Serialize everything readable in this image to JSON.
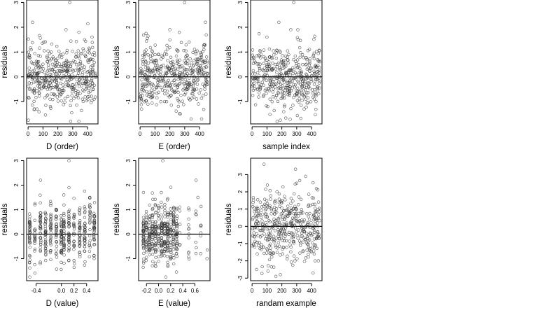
{
  "chart_data": [
    {
      "id": "panel-1",
      "type": "scatter",
      "xlabel": "D (order)",
      "ylabel": "residuals",
      "xlim": [
        -10,
        470
      ],
      "ylim": [
        -1.9,
        3.1
      ],
      "xticks": [
        0,
        100,
        200,
        300,
        400
      ],
      "yticks": [
        -1,
        0,
        1,
        2,
        3
      ],
      "hline": 0,
      "x_range": [
        0,
        455
      ],
      "y_range": [
        -1.8,
        3.0
      ],
      "points": [
        {
          "x": 2,
          "y": -1.75
        },
        {
          "x": 30,
          "y": 2.2
        },
        {
          "x": 280,
          "y": 3.0
        },
        {
          "x": 255,
          "y": 1.9
        },
        {
          "x": 430,
          "y": 1.6
        },
        {
          "x": 60,
          "y": -1.3
        },
        {
          "x": 150,
          "y": -1.2
        },
        {
          "x": 380,
          "y": 1.5
        }
      ],
      "n_points": 455,
      "seed": 11,
      "pattern": "uniform"
    },
    {
      "id": "panel-2",
      "type": "scatter",
      "xlabel": "E (order)",
      "ylabel": "residuals",
      "xlim": [
        -10,
        470
      ],
      "ylim": [
        -1.9,
        3.1
      ],
      "xticks": [
        0,
        100,
        200,
        300,
        400
      ],
      "yticks": [
        -1,
        0,
        1,
        2,
        3
      ],
      "hline": 0,
      "x_range": [
        0,
        455
      ],
      "y_range": [
        -1.7,
        3.0
      ],
      "points": [
        {
          "x": 300,
          "y": 3.0
        },
        {
          "x": 440,
          "y": 2.2
        },
        {
          "x": 40,
          "y": 1.75
        },
        {
          "x": 200,
          "y": 1.9
        },
        {
          "x": 10,
          "y": -1.3
        },
        {
          "x": 270,
          "y": -1.5
        },
        {
          "x": 330,
          "y": 1.4
        }
      ],
      "n_points": 455,
      "seed": 23,
      "pattern": "uniform"
    },
    {
      "id": "panel-3",
      "type": "scatter",
      "xlabel": "sample index",
      "ylabel": "residuals",
      "xlim": [
        -10,
        470
      ],
      "ylim": [
        -1.9,
        3.1
      ],
      "xticks": [
        0,
        100,
        200,
        300,
        400
      ],
      "yticks": [
        -1,
        0,
        1,
        2,
        3
      ],
      "hline": 0,
      "x_range": [
        0,
        455
      ],
      "y_range": [
        -1.8,
        3.0
      ],
      "points": [
        {
          "x": 280,
          "y": 3.0
        },
        {
          "x": 180,
          "y": 2.2
        },
        {
          "x": 190,
          "y": -1.75
        },
        {
          "x": 260,
          "y": 1.9
        },
        {
          "x": 100,
          "y": 1.6
        },
        {
          "x": 350,
          "y": -1.3
        }
      ],
      "n_points": 455,
      "seed": 37,
      "pattern": "uniform"
    },
    {
      "id": "panel-4",
      "type": "scatter",
      "xlabel": "D (value)",
      "ylabel": "residuals",
      "xlim": [
        -0.55,
        0.58
      ],
      "ylim": [
        -1.9,
        3.1
      ],
      "xticks": [
        -0.4,
        0.0,
        0.2,
        0.4
      ],
      "xtick_labels": [
        "-0.4",
        "0.0",
        "0.2",
        "0.4"
      ],
      "yticks": [
        -1,
        0,
        1,
        2,
        3
      ],
      "hline": 0,
      "x_values": [
        -0.5,
        -0.42,
        -0.33,
        -0.25,
        -0.17,
        -0.08,
        0.0,
        0.04,
        0.12,
        0.2,
        0.29,
        0.37,
        0.45,
        0.52
      ],
      "y_range": [
        -1.8,
        3.0
      ],
      "points": [
        {
          "x": 0.12,
          "y": 3.0
        },
        {
          "x": -0.33,
          "y": 2.2
        },
        {
          "x": 0.12,
          "y": 1.9
        },
        {
          "x": -0.5,
          "y": -1.75
        },
        {
          "x": 0.45,
          "y": 1.5
        }
      ],
      "n_points": 455,
      "seed": 51,
      "pattern": "discrete"
    },
    {
      "id": "panel-5",
      "type": "scatter",
      "xlabel": "E (value)",
      "ylabel": "residuals",
      "xlim": [
        -0.33,
        0.85
      ],
      "ylim": [
        -1.9,
        3.1
      ],
      "xticks": [
        -0.2,
        0.0,
        0.2,
        0.4,
        0.6
      ],
      "xtick_labels": [
        "-0.2",
        "0.0",
        "0.2",
        "0.4",
        "0.6"
      ],
      "yticks": [
        -1,
        0,
        1,
        2,
        3
      ],
      "hline": 0,
      "x_values": [
        -0.25,
        -0.2,
        -0.15,
        -0.1,
        -0.05,
        0.0,
        0.05,
        0.1,
        0.15,
        0.2,
        0.25,
        0.3,
        0.35,
        0.5,
        0.62,
        0.7,
        0.8
      ],
      "y_range": [
        -1.8,
        3.0
      ],
      "points": [
        {
          "x": 0.07,
          "y": 3.0
        },
        {
          "x": 0.62,
          "y": 2.2
        },
        {
          "x": -0.25,
          "y": 1.7
        },
        {
          "x": 0.12,
          "y": -1.75
        },
        {
          "x": 0.8,
          "y": -1.0
        },
        {
          "x": 0.65,
          "y": 1.5
        }
      ],
      "n_points": 455,
      "seed": 67,
      "pattern": "discrete-dense"
    },
    {
      "id": "panel-6",
      "type": "scatter",
      "xlabel": "randam example",
      "ylabel": "residuals",
      "xlim": [
        -10,
        470
      ],
      "ylim": [
        -3.15,
        3.95
      ],
      "xticks": [
        0,
        100,
        200,
        300,
        400
      ],
      "yticks": [
        -3,
        -2,
        -1,
        0,
        1,
        2,
        3
      ],
      "hline": 0,
      "x_range": [
        0,
        455
      ],
      "y_range": [
        -2.9,
        3.7
      ],
      "points": [
        {
          "x": 80,
          "y": 3.6
        },
        {
          "x": 360,
          "y": 2.9
        },
        {
          "x": 190,
          "y": -2.8
        },
        {
          "x": 410,
          "y": -2.7
        },
        {
          "x": 30,
          "y": -2.5
        },
        {
          "x": 300,
          "y": 2.5
        }
      ],
      "n_points": 455,
      "seed": 83,
      "pattern": "wide"
    }
  ]
}
